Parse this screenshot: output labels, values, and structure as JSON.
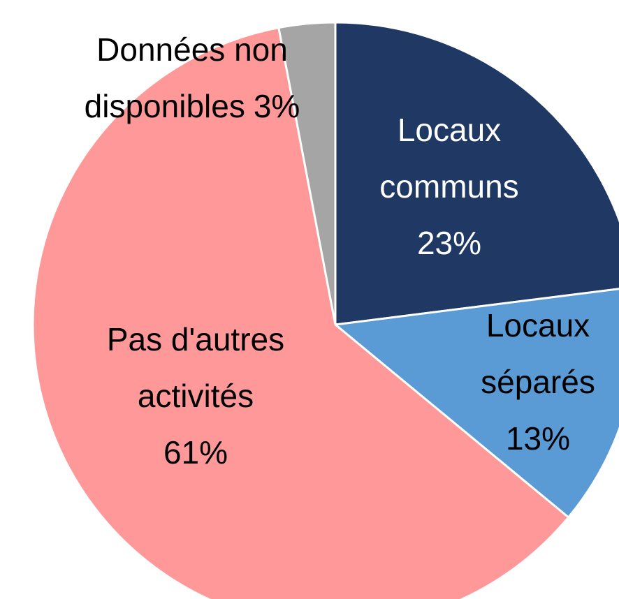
{
  "chart_data": {
    "type": "pie",
    "categories": [
      [
        "Locaux",
        "communs"
      ],
      [
        "Locaux",
        "séparés"
      ],
      [
        "Pas d'autres",
        "activités"
      ],
      [
        "Données non",
        "disponibles"
      ]
    ],
    "values": [
      23,
      13,
      61,
      3
    ],
    "value_labels": [
      "23%",
      "13%",
      "61%",
      "3%"
    ],
    "colors": [
      "#203864",
      "#5b9bd5",
      "#ff9999",
      "#a5a5a5"
    ],
    "label_colors": [
      "#ffffff",
      "#000000",
      "#000000",
      "#000000"
    ]
  }
}
